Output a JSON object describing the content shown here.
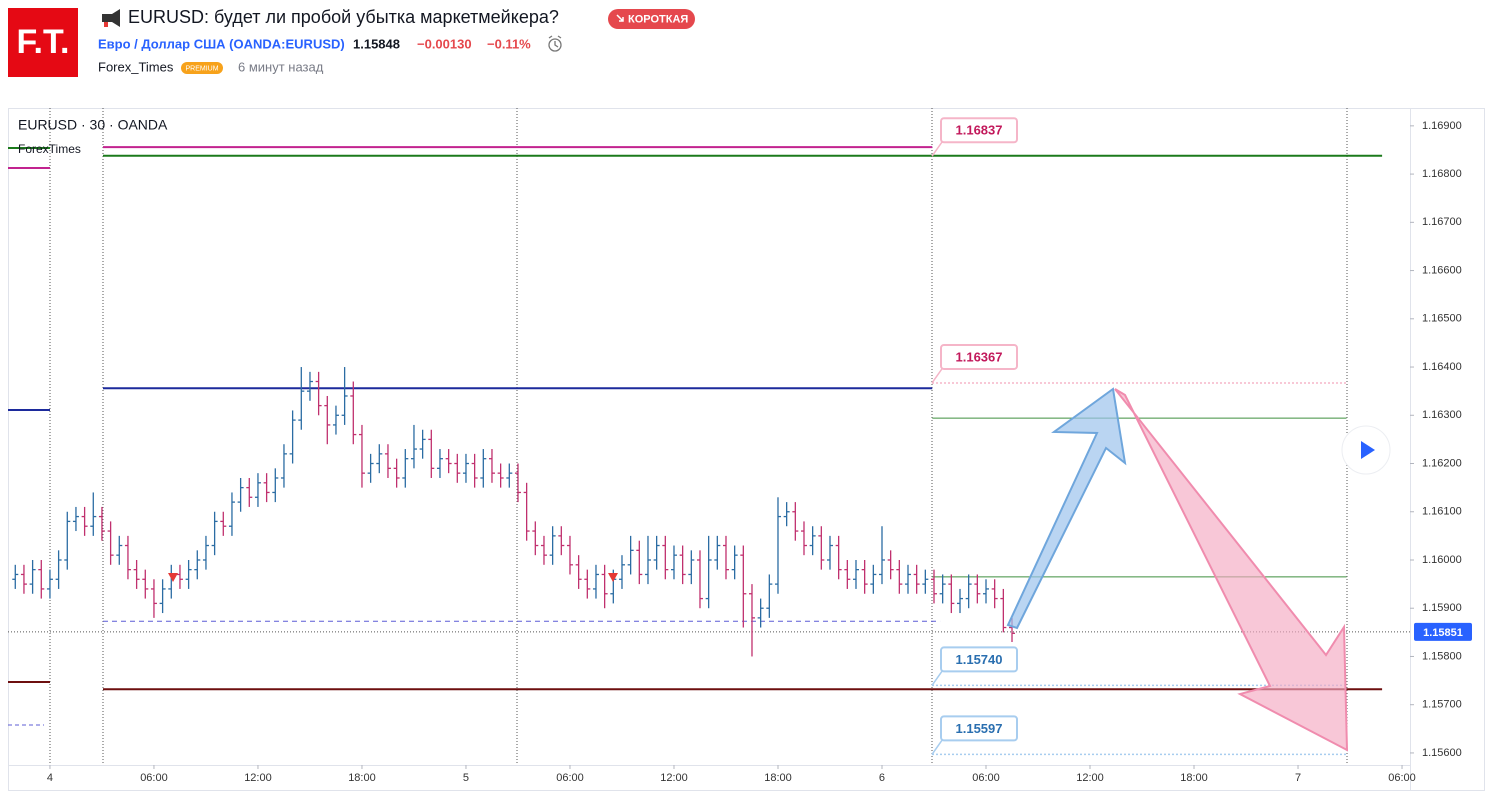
{
  "header": {
    "logo": "F.T.",
    "title": "EURUSD: будет ли пробой убытка маркетмейкера?",
    "badge": "КОРОТКАЯ",
    "symbol": "Евро / Доллар США (OANDA:EURUSD)",
    "price": "1.15848",
    "change": "−0.00130",
    "change_pct": "−0.11%",
    "author": "Forex_Times",
    "author_badge": "PREMIUM",
    "time": "6 минут назад"
  },
  "chart_data": {
    "type": "ohlc",
    "title": "EURUSD · 30 · OANDA",
    "indicator": "ForexTimes",
    "up_color": "#2b6ca3",
    "down_color": "#c0306e",
    "xlim": [
      -2.42,
      78.46
    ],
    "xticks": [
      {
        "value": 0,
        "label": "4"
      },
      {
        "value": 6,
        "label": "06:00"
      },
      {
        "value": 12,
        "label": "12:00"
      },
      {
        "value": 18,
        "label": "18:00"
      },
      {
        "value": 24,
        "label": "5"
      },
      {
        "value": 30,
        "label": "06:00"
      },
      {
        "value": 36,
        "label": "12:00"
      },
      {
        "value": 42,
        "label": "18:00"
      },
      {
        "value": 48,
        "label": "6"
      },
      {
        "value": 54,
        "label": "06:00"
      },
      {
        "value": 60,
        "label": "12:00"
      },
      {
        "value": 66,
        "label": "18:00"
      },
      {
        "value": 72,
        "label": "7"
      },
      {
        "value": 78,
        "label": "06:00"
      }
    ],
    "ylim": [
      1.15575,
      1.16937
    ],
    "yticks": [
      {
        "value": 1.156,
        "label": "1.15600"
      },
      {
        "value": 1.157,
        "label": "1.15700"
      },
      {
        "value": 1.158,
        "label": "1.15800"
      },
      {
        "value": 1.159,
        "label": "1.15900"
      },
      {
        "value": 1.16,
        "label": "1.16000"
      },
      {
        "value": 1.161,
        "label": "1.16100"
      },
      {
        "value": 1.162,
        "label": "1.16200"
      },
      {
        "value": 1.163,
        "label": "1.16300"
      },
      {
        "value": 1.164,
        "label": "1.16400"
      },
      {
        "value": 1.165,
        "label": "1.16500"
      },
      {
        "value": 1.166,
        "label": "1.16600"
      },
      {
        "value": 1.167,
        "label": "1.16700"
      },
      {
        "value": 1.168,
        "label": "1.16800"
      },
      {
        "value": 1.169,
        "label": "1.16900"
      }
    ],
    "current_price": 1.15851,
    "current_color": "#2962ff",
    "x": [
      -2,
      -1.5,
      -1,
      -0.5,
      0,
      0.5,
      1,
      1.5,
      2,
      2.5,
      3,
      3.5,
      4,
      4.5,
      5,
      5.5,
      6,
      6.5,
      7,
      7.5,
      8,
      8.5,
      9,
      9.5,
      10,
      10.5,
      11,
      11.5,
      12,
      12.5,
      13,
      13.5,
      14,
      14.5,
      15,
      15.5,
      16,
      16.5,
      17,
      17.5,
      18,
      18.5,
      19,
      19.5,
      20,
      20.5,
      21,
      21.5,
      22,
      22.5,
      23,
      23.5,
      24,
      24.5,
      25,
      25.5,
      26,
      26.5,
      27,
      27.5,
      28,
      28.5,
      29,
      29.5,
      30,
      30.5,
      31,
      31.5,
      32,
      32.5,
      33,
      33.5,
      34,
      34.5,
      35,
      35.5,
      36,
      36.5,
      37,
      37.5,
      38,
      38.5,
      39,
      39.5,
      40,
      40.5,
      41,
      41.5,
      42,
      42.5,
      43,
      43.5,
      44,
      44.5,
      45,
      45.5,
      46,
      46.5,
      47,
      47.5,
      48,
      48.5,
      49,
      49.5,
      50,
      50.5,
      51,
      51.5,
      52,
      52.5,
      53,
      53.5,
      54,
      54.5,
      55,
      55.5
    ],
    "ohlc": [
      [
        1.1596,
        1.1599,
        1.1594,
        1.1597
      ],
      [
        1.1597,
        1.1599,
        1.1593,
        1.1595
      ],
      [
        1.1595,
        1.16,
        1.1593,
        1.1598
      ],
      [
        1.1598,
        1.16,
        1.1592,
        1.1594
      ],
      [
        1.1594,
        1.1598,
        1.1592,
        1.1596
      ],
      [
        1.1596,
        1.1602,
        1.1594,
        1.16
      ],
      [
        1.16,
        1.161,
        1.1598,
        1.1608
      ],
      [
        1.1608,
        1.1611,
        1.1606,
        1.1609
      ],
      [
        1.1609,
        1.1611,
        1.1605,
        1.1607
      ],
      [
        1.1607,
        1.1614,
        1.1605,
        1.1609
      ],
      [
        1.1609,
        1.1611,
        1.1604,
        1.1606
      ],
      [
        1.1606,
        1.1608,
        1.1599,
        1.1601
      ],
      [
        1.1601,
        1.1605,
        1.1599,
        1.1603
      ],
      [
        1.1603,
        1.1605,
        1.1596,
        1.1598
      ],
      [
        1.1598,
        1.16,
        1.1594,
        1.1596
      ],
      [
        1.1596,
        1.1598,
        1.1592,
        1.1594
      ],
      [
        1.1594,
        1.1596,
        1.1588,
        1.1591
      ],
      [
        1.1591,
        1.1596,
        1.1589,
        1.1594
      ],
      [
        1.1594,
        1.1599,
        1.1592,
        1.1597
      ],
      [
        1.1597,
        1.1599,
        1.1594,
        1.1596
      ],
      [
        1.1596,
        1.16,
        1.1594,
        1.1598
      ],
      [
        1.1598,
        1.1602,
        1.1596,
        1.16
      ],
      [
        1.16,
        1.1605,
        1.1598,
        1.1603
      ],
      [
        1.1603,
        1.161,
        1.1601,
        1.1608
      ],
      [
        1.1608,
        1.161,
        1.1605,
        1.1607
      ],
      [
        1.1607,
        1.1614,
        1.1605,
        1.1612
      ],
      [
        1.1612,
        1.1617,
        1.161,
        1.1615
      ],
      [
        1.1615,
        1.1617,
        1.1611,
        1.1613
      ],
      [
        1.1613,
        1.1618,
        1.1611,
        1.1616
      ],
      [
        1.1616,
        1.1618,
        1.1612,
        1.1614
      ],
      [
        1.1614,
        1.1619,
        1.1612,
        1.1617
      ],
      [
        1.1617,
        1.1624,
        1.1615,
        1.1622
      ],
      [
        1.1622,
        1.1631,
        1.162,
        1.1629
      ],
      [
        1.1629,
        1.164,
        1.1627,
        1.1635
      ],
      [
        1.1635,
        1.1639,
        1.1633,
        1.1637
      ],
      [
        1.1637,
        1.1639,
        1.163,
        1.1632
      ],
      [
        1.1632,
        1.1634,
        1.1624,
        1.1628
      ],
      [
        1.1628,
        1.1632,
        1.1626,
        1.163
      ],
      [
        1.163,
        1.164,
        1.1628,
        1.1634
      ],
      [
        1.1634,
        1.1637,
        1.1624,
        1.1626
      ],
      [
        1.1626,
        1.1628,
        1.1615,
        1.1618
      ],
      [
        1.1618,
        1.1622,
        1.1616,
        1.162
      ],
      [
        1.162,
        1.1624,
        1.1618,
        1.1622
      ],
      [
        1.1622,
        1.1624,
        1.1617,
        1.1619
      ],
      [
        1.1619,
        1.1621,
        1.1615,
        1.1617
      ],
      [
        1.1617,
        1.1623,
        1.1615,
        1.1621
      ],
      [
        1.1621,
        1.1628,
        1.1619,
        1.1623
      ],
      [
        1.1623,
        1.1627,
        1.1621,
        1.1625
      ],
      [
        1.1625,
        1.1627,
        1.1617,
        1.1619
      ],
      [
        1.1619,
        1.1623,
        1.1617,
        1.1621
      ],
      [
        1.1621,
        1.1623,
        1.1618,
        1.162
      ],
      [
        1.162,
        1.1622,
        1.1616,
        1.1618
      ],
      [
        1.1618,
        1.1622,
        1.1616,
        1.162
      ],
      [
        1.162,
        1.1622,
        1.1615,
        1.1617
      ],
      [
        1.1617,
        1.1623,
        1.1615,
        1.1621
      ],
      [
        1.1621,
        1.1623,
        1.1616,
        1.1618
      ],
      [
        1.1618,
        1.162,
        1.1615,
        1.1617
      ],
      [
        1.1617,
        1.162,
        1.1615,
        1.1618
      ],
      [
        1.1618,
        1.162,
        1.1612,
        1.1614
      ],
      [
        1.1614,
        1.1616,
        1.1604,
        1.1606
      ],
      [
        1.1606,
        1.1608,
        1.1601,
        1.1603
      ],
      [
        1.1603,
        1.1605,
        1.1599,
        1.1601
      ],
      [
        1.1601,
        1.1607,
        1.1599,
        1.1605
      ],
      [
        1.1605,
        1.1607,
        1.1601,
        1.1603
      ],
      [
        1.1603,
        1.1605,
        1.1597,
        1.1599
      ],
      [
        1.1599,
        1.1601,
        1.1594,
        1.1596
      ],
      [
        1.1596,
        1.1598,
        1.1592,
        1.1594
      ],
      [
        1.1594,
        1.1599,
        1.1592,
        1.1597
      ],
      [
        1.1597,
        1.1599,
        1.159,
        1.1593
      ],
      [
        1.1593,
        1.1598,
        1.1591,
        1.1596
      ],
      [
        1.1596,
        1.1601,
        1.1594,
        1.1599
      ],
      [
        1.1599,
        1.1605,
        1.1597,
        1.1602
      ],
      [
        1.1602,
        1.1604,
        1.1595,
        1.1597
      ],
      [
        1.1597,
        1.1605,
        1.1595,
        1.16
      ],
      [
        1.16,
        1.1605,
        1.1598,
        1.1603
      ],
      [
        1.1603,
        1.1605,
        1.1596,
        1.1598
      ],
      [
        1.1598,
        1.1603,
        1.1596,
        1.1601
      ],
      [
        1.1601,
        1.1603,
        1.1595,
        1.1597
      ],
      [
        1.1597,
        1.1602,
        1.1595,
        1.16
      ],
      [
        1.16,
        1.1602,
        1.159,
        1.1592
      ],
      [
        1.1592,
        1.1605,
        1.159,
        1.16
      ],
      [
        1.16,
        1.1605,
        1.1598,
        1.1603
      ],
      [
        1.1603,
        1.1605,
        1.1596,
        1.1598
      ],
      [
        1.1598,
        1.1603,
        1.1596,
        1.1601
      ],
      [
        1.1601,
        1.1603,
        1.1586,
        1.1593
      ],
      [
        1.1593,
        1.1595,
        1.158,
        1.1588
      ],
      [
        1.1588,
        1.1592,
        1.1586,
        1.159
      ],
      [
        1.159,
        1.1597,
        1.1588,
        1.1595
      ],
      [
        1.1595,
        1.1613,
        1.1593,
        1.1609
      ],
      [
        1.1609,
        1.1612,
        1.1607,
        1.161
      ],
      [
        1.161,
        1.1612,
        1.1604,
        1.1606
      ],
      [
        1.1606,
        1.1608,
        1.1601,
        1.1603
      ],
      [
        1.1603,
        1.1607,
        1.1601,
        1.1605
      ],
      [
        1.1605,
        1.1607,
        1.1598,
        1.16
      ],
      [
        1.16,
        1.1605,
        1.1598,
        1.1603
      ],
      [
        1.1603,
        1.1605,
        1.1596,
        1.1598
      ],
      [
        1.1598,
        1.16,
        1.1594,
        1.1596
      ],
      [
        1.1596,
        1.16,
        1.1594,
        1.1598
      ],
      [
        1.1598,
        1.16,
        1.1593,
        1.1595
      ],
      [
        1.1595,
        1.1599,
        1.1593,
        1.1597
      ],
      [
        1.1597,
        1.1607,
        1.1595,
        1.16
      ],
      [
        1.16,
        1.1602,
        1.1596,
        1.1598
      ],
      [
        1.1598,
        1.16,
        1.1593,
        1.1595
      ],
      [
        1.1595,
        1.1599,
        1.1593,
        1.1597
      ],
      [
        1.1597,
        1.1599,
        1.1593,
        1.1595
      ],
      [
        1.1595,
        1.1598,
        1.1593,
        1.1596
      ],
      [
        1.1596,
        1.1598,
        1.1591,
        1.1593
      ],
      [
        1.1593,
        1.1597,
        1.1591,
        1.1595
      ],
      [
        1.1595,
        1.1597,
        1.1589,
        1.1591
      ],
      [
        1.1591,
        1.1594,
        1.1589,
        1.1592
      ],
      [
        1.1592,
        1.1597,
        1.159,
        1.1595
      ],
      [
        1.1595,
        1.1597,
        1.1591,
        1.1593
      ],
      [
        1.1593,
        1.1596,
        1.1591,
        1.1594
      ],
      [
        1.1594,
        1.1596,
        1.159,
        1.1592
      ],
      [
        1.1592,
        1.1594,
        1.1585,
        1.1586
      ],
      [
        1.1586,
        1.1588,
        1.1583,
        1.15848
      ]
    ],
    "levels": [
      {
        "value": 1.16856,
        "from": 3.06,
        "to": 50.9,
        "color": "#c2238f",
        "style": "solid"
      },
      {
        "value": 1.16838,
        "from": 3.06,
        "to": 76.85,
        "color": "#1b7a1b",
        "style": "solid"
      },
      {
        "value": 1.16356,
        "from": 3.06,
        "to": 50.9,
        "color": "#1c2a9c",
        "style": "solid"
      },
      {
        "value": 1.15873,
        "from": 3.06,
        "to": 51.35,
        "color": "#5c5cd6",
        "style": "dashed"
      },
      {
        "value": 1.15732,
        "from": 3.06,
        "to": 76.85,
        "color": "#6d0f0f",
        "style": "solid"
      },
      {
        "value": 1.16294,
        "from": 50.9,
        "to": 74.8,
        "color": "#3f8f3f",
        "style": "thin"
      },
      {
        "value": 1.15965,
        "from": 50.9,
        "to": 74.8,
        "color": "#3f8f3f",
        "style": "thin"
      }
    ],
    "annotations": [
      {
        "value": 1.16837,
        "color": "#c2185b",
        "border": "#f5b5c8",
        "extend": false
      },
      {
        "value": 1.16367,
        "color": "#c2185b",
        "border": "#f5b5c8",
        "extend": true
      },
      {
        "value": 1.1574,
        "label": "1.15740",
        "color": "#2a6fb0",
        "border": "#a8cdef",
        "extend": true
      },
      {
        "value": 1.15597,
        "color": "#2a6fb0",
        "border": "#a8cdef",
        "extend": true
      }
    ]
  }
}
